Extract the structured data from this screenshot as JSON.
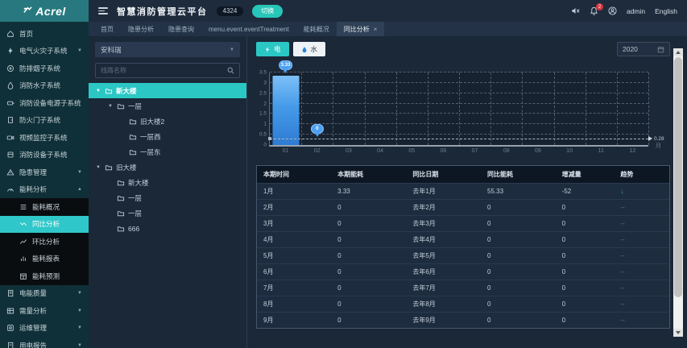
{
  "brand": {
    "logo_text": "Acrel",
    "accent": "#2bc7c4"
  },
  "header": {
    "title": "智慧消防管理云平台",
    "count_badge": "4324",
    "switch_label": "切换",
    "notification_count": "2",
    "username": "admin",
    "language": "English"
  },
  "tabs": [
    {
      "label": "首页",
      "active": false,
      "closable": false
    },
    {
      "label": "隐患分析",
      "active": false,
      "closable": false
    },
    {
      "label": "隐患查询",
      "active": false,
      "closable": false
    },
    {
      "label": "menu.event.eventTreatment",
      "active": false,
      "closable": false
    },
    {
      "label": "能耗概况",
      "active": false,
      "closable": false
    },
    {
      "label": "同比分析",
      "active": true,
      "closable": true
    }
  ],
  "sidebar": {
    "items": [
      {
        "label": "首页",
        "icon": "home",
        "expandable": false
      },
      {
        "label": "电气火灾子系统",
        "icon": "bolt",
        "expandable": true
      },
      {
        "label": "防排烟子系统",
        "icon": "fan",
        "expandable": false
      },
      {
        "label": "消防水子系统",
        "icon": "droplet",
        "expandable": false
      },
      {
        "label": "消防设备电源子系统",
        "icon": "battery",
        "expandable": false
      },
      {
        "label": "防火门子系统",
        "icon": "door",
        "expandable": false
      },
      {
        "label": "视频监控子系统",
        "icon": "camera",
        "expandable": false
      },
      {
        "label": "消防设备子系统",
        "icon": "box",
        "expandable": false
      },
      {
        "label": "隐患管理",
        "icon": "alert",
        "expandable": true
      },
      {
        "label": "能耗分析",
        "icon": "meter",
        "expandable": true,
        "expanded": true,
        "children": [
          {
            "label": "能耗概况",
            "icon": "list",
            "active": false
          },
          {
            "label": "同比分析",
            "icon": "trend",
            "active": true
          },
          {
            "label": "环比分析",
            "icon": "line",
            "active": false
          },
          {
            "label": "能耗报表",
            "icon": "report",
            "active": false
          },
          {
            "label": "能耗预测",
            "icon": "grid",
            "active": false
          }
        ]
      },
      {
        "label": "电能质量",
        "icon": "doc",
        "expandable": true
      },
      {
        "label": "需量分析",
        "icon": "table",
        "expandable": true
      },
      {
        "label": "运维管理",
        "icon": "wrench",
        "expandable": true
      },
      {
        "label": "用电报告",
        "icon": "file",
        "expandable": true
      }
    ]
  },
  "panel": {
    "org_select_value": "安科瑞",
    "search_placeholder": "线路名称",
    "tree": [
      {
        "label": "新大楼",
        "level": 0,
        "expanded": true,
        "selected": true
      },
      {
        "label": "一层",
        "level": 1,
        "expanded": true,
        "selected": false
      },
      {
        "label": "旧大楼2",
        "level": 2,
        "selected": false
      },
      {
        "label": "一层西",
        "level": 2,
        "selected": false
      },
      {
        "label": "一层东",
        "level": 2,
        "selected": false
      },
      {
        "label": "旧大楼",
        "level": 0,
        "expanded": true,
        "selected": false
      },
      {
        "label": "新大楼",
        "level": 1,
        "selected": false
      },
      {
        "label": "一层",
        "level": 1,
        "selected": false
      },
      {
        "label": "一层",
        "level": 1,
        "selected": false
      },
      {
        "label": "666",
        "level": 1,
        "selected": false
      }
    ]
  },
  "toolbar": {
    "electric_label": "电",
    "water_label": "水",
    "year": "2020"
  },
  "chart_data": {
    "type": "bar",
    "categories": [
      "01",
      "02",
      "03",
      "04",
      "05",
      "06",
      "07",
      "08",
      "09",
      "10",
      "11",
      "12"
    ],
    "values": [
      3.33,
      0,
      0,
      0,
      0,
      0,
      0,
      0,
      0,
      0,
      0,
      0
    ],
    "labeled_points": [
      {
        "index": 0,
        "value": "3.33"
      },
      {
        "index": 1,
        "value": "0"
      }
    ],
    "average_line": 0.28,
    "average_label": "0.28",
    "x_unit": "月",
    "ylim": [
      0,
      3.5
    ],
    "yticks": [
      0,
      0.5,
      1,
      1.5,
      2,
      2.5,
      3,
      3.5
    ],
    "grid": "dashed",
    "bar_color_top": "#7cc0f8",
    "bar_color_bottom": "#2e7bd4",
    "legend": []
  },
  "table": {
    "headers": [
      "本期时间",
      "本期能耗",
      "同比日期",
      "同比能耗",
      "增减量",
      "趋势"
    ],
    "rows": [
      [
        "1月",
        "3.33",
        "去年1月",
        "55.33",
        "-52",
        "↓"
      ],
      [
        "2月",
        "0",
        "去年2月",
        "0",
        "0",
        "--"
      ],
      [
        "3月",
        "0",
        "去年3月",
        "0",
        "0",
        "--"
      ],
      [
        "4月",
        "0",
        "去年4月",
        "0",
        "0",
        "--"
      ],
      [
        "5月",
        "0",
        "去年5月",
        "0",
        "0",
        "--"
      ],
      [
        "6月",
        "0",
        "去年6月",
        "0",
        "0",
        "--"
      ],
      [
        "7月",
        "0",
        "去年7月",
        "0",
        "0",
        "--"
      ],
      [
        "8月",
        "0",
        "去年8月",
        "0",
        "0",
        "--"
      ],
      [
        "9月",
        "0",
        "去年9月",
        "0",
        "0",
        "--"
      ]
    ]
  }
}
